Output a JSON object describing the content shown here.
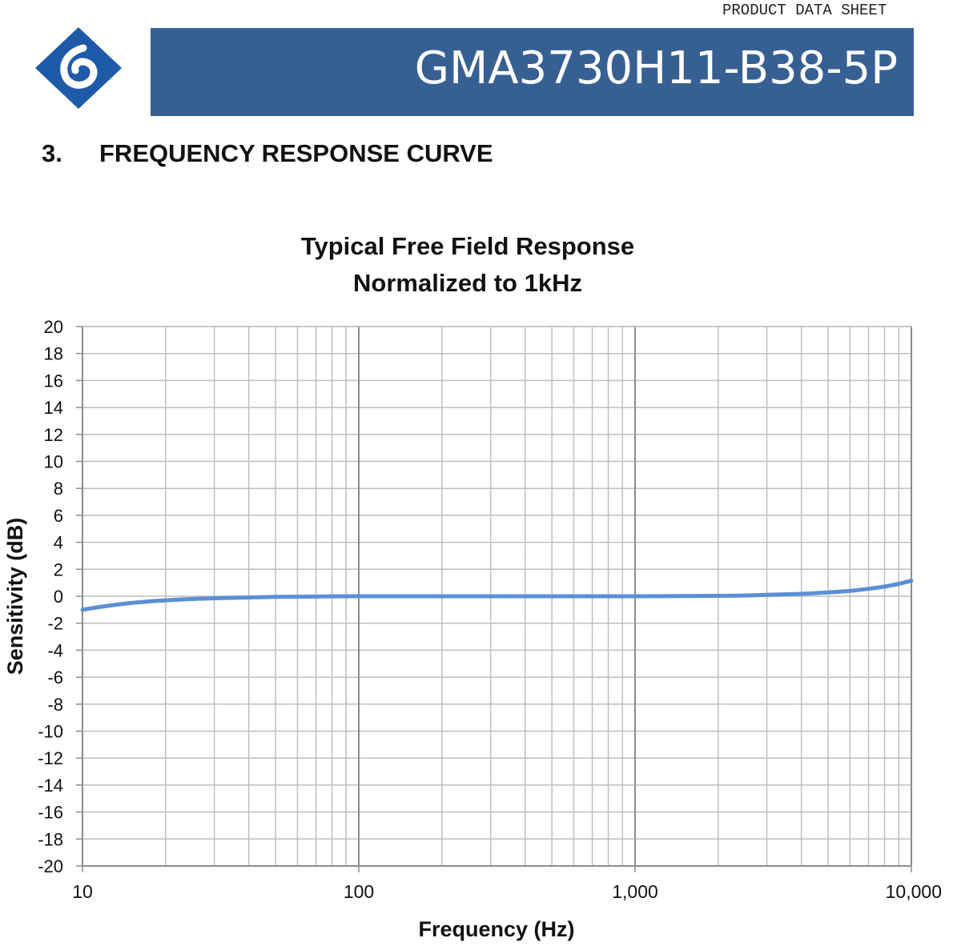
{
  "header": {
    "doc_label": "PRODUCT DATA SHEET",
    "part_number": "GMA3730H11-B38-5P",
    "logo": "company-logo",
    "banner_color": "#376092",
    "logo_color": "#1f5aa8"
  },
  "section": {
    "number": "3.",
    "title": "FREQUENCY RESPONSE CURVE"
  },
  "chart_data": {
    "type": "line",
    "title": "Typical Free Field Response",
    "subtitle": "Normalized to 1kHz",
    "xlabel": "Frequency (Hz)",
    "ylabel": "Sensitivity (dB)",
    "x_scale": "log",
    "xlim": [
      10,
      10000
    ],
    "ylim": [
      -20,
      20
    ],
    "x_ticks": [
      10,
      100,
      1000,
      10000
    ],
    "x_tick_labels": [
      "10",
      "100",
      "1,000",
      "10,000"
    ],
    "y_ticks": [
      20,
      18,
      16,
      14,
      12,
      10,
      8,
      6,
      4,
      2,
      0,
      -2,
      -4,
      -6,
      -8,
      -10,
      -12,
      -14,
      -16,
      -18,
      -20
    ],
    "y_tick_labels": [
      "20",
      "18",
      "16",
      "14",
      "12",
      "10",
      "8",
      "6",
      "4",
      "2",
      "0",
      "-2",
      "-4",
      "-6",
      "-8",
      "-10",
      "-12",
      "-14",
      "-16",
      "-18",
      "-20"
    ],
    "grid": true,
    "line_color": "#5b8fd6",
    "series": [
      {
        "x": [
          10,
          12,
          15,
          20,
          30,
          50,
          100,
          200,
          500,
          1000,
          2000,
          3000,
          4000,
          5000,
          6000,
          7000,
          8000,
          9000,
          10000
        ],
        "y": [
          -1.0,
          -0.75,
          -0.5,
          -0.3,
          -0.15,
          -0.05,
          0.0,
          0.0,
          0.0,
          0.0,
          0.03,
          0.1,
          0.18,
          0.28,
          0.4,
          0.55,
          0.72,
          0.92,
          1.15
        ]
      }
    ]
  }
}
